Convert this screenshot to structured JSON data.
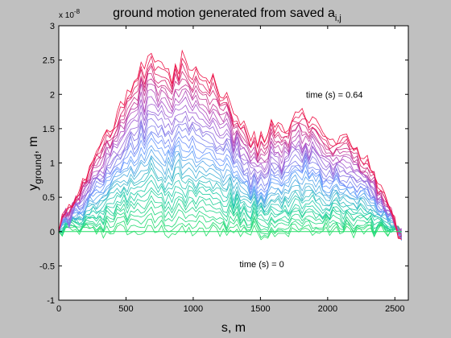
{
  "chart_data": {
    "type": "line",
    "title": {
      "main": "ground motion generated from saved a",
      "subscript": "i,j"
    },
    "xlabel": "s, m",
    "ylabel": {
      "main": "y",
      "subscript": "ground",
      "suffix": ", m"
    },
    "y_exponent": {
      "prefix": "x 10",
      "power": "-8"
    },
    "xlim": [
      0,
      2600
    ],
    "ylim": [
      -1,
      3
    ],
    "xticks": [
      0,
      500,
      1000,
      1500,
      2000,
      2500
    ],
    "yticks": [
      -1,
      -0.5,
      0,
      0.5,
      1,
      1.5,
      2,
      2.5,
      3
    ],
    "xtick_labels": [
      "0",
      "500",
      "1000",
      "1500",
      "2000",
      "2500"
    ],
    "ytick_labels": [
      "-1",
      "-0.5",
      "0",
      "0.5",
      "1",
      "1.5",
      "2",
      "2.5",
      "3"
    ],
    "annotations": [
      {
        "text": "time (s) = 0.64",
        "x": 2050,
        "y": 1.95
      },
      {
        "text": "time (s) = 0",
        "x": 1510,
        "y": -0.52
      }
    ],
    "series_count": 33,
    "time_range_s": [
      0,
      0.64
    ],
    "series_colors": [
      "#22dd66",
      "#22ccaa",
      "#6699ff",
      "#aa55cc",
      "#ee1144"
    ],
    "x": [
      0,
      100,
      200,
      300,
      400,
      500,
      600,
      700,
      800,
      900,
      1000,
      1100,
      1200,
      1300,
      1400,
      1500,
      1600,
      1700,
      1800,
      1900,
      2000,
      2100,
      2200,
      2300,
      2400,
      2500,
      2550
    ],
    "final_profile": [
      0.0,
      0.5,
      0.8,
      1.2,
      1.6,
      2.0,
      2.4,
      2.5,
      2.35,
      2.4,
      2.45,
      2.3,
      2.05,
      1.75,
      1.45,
      1.35,
      1.5,
      1.55,
      1.75,
      1.55,
      1.4,
      1.3,
      1.2,
      0.95,
      0.6,
      0.1,
      -0.1
    ],
    "grid": false,
    "legend": "none"
  }
}
